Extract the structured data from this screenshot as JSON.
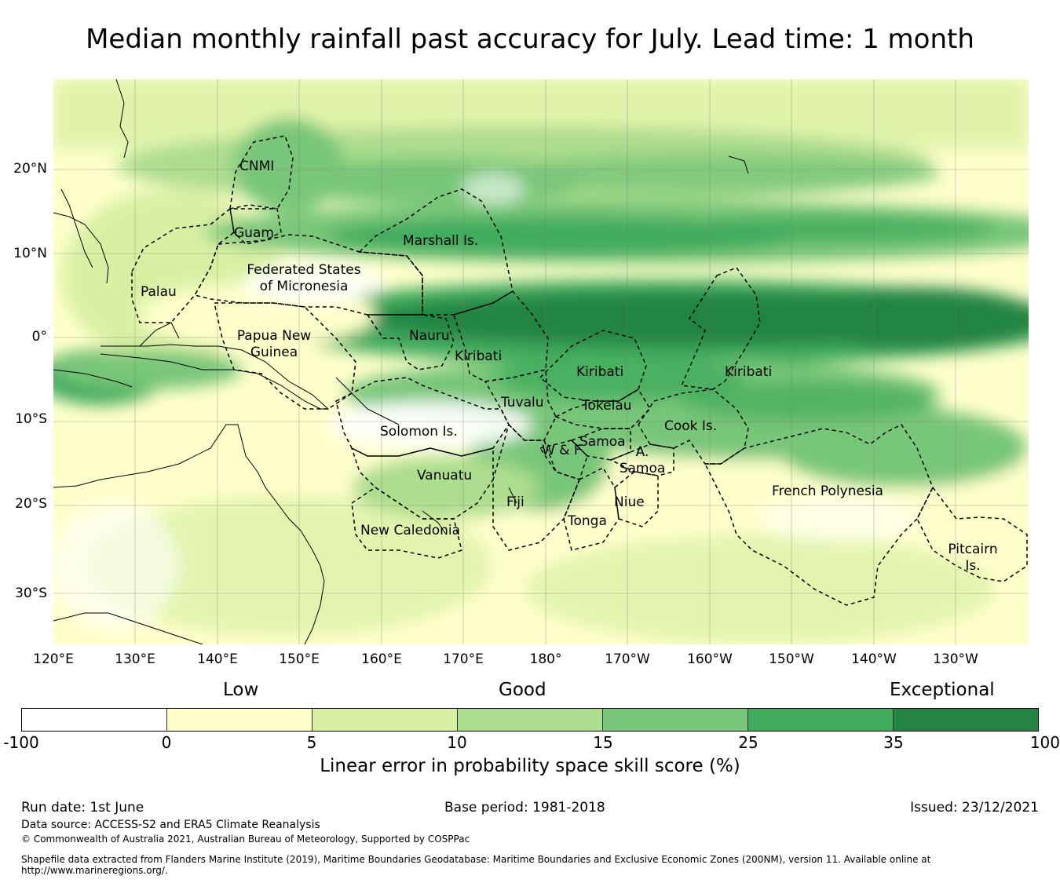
{
  "title": "Median monthly rainfall past accuracy for July. Lead time: 1 month",
  "map": {
    "lat_labels": [
      "20°N",
      "10°N",
      "0°",
      "10°S",
      "20°S",
      "30°S"
    ],
    "lon_labels": [
      "120°E",
      "130°E",
      "140°E",
      "150°E",
      "160°E",
      "170°E",
      "180°",
      "170°W",
      "160°W",
      "150°W",
      "140°W",
      "130°W"
    ],
    "regions": [
      {
        "name": "CNMI"
      },
      {
        "name": "Guam"
      },
      {
        "name": "Palau"
      },
      {
        "name": "Federated States\nof Micronesia"
      },
      {
        "name": "Marshall Is."
      },
      {
        "name": "Papua New\nGuinea"
      },
      {
        "name": "Nauru"
      },
      {
        "name": "Kiribati"
      },
      {
        "name": "Kiribati"
      },
      {
        "name": "Kiribati"
      },
      {
        "name": "Tuvalu"
      },
      {
        "name": "Tokelau"
      },
      {
        "name": "Solomon Is."
      },
      {
        "name": "Cook Is."
      },
      {
        "name": "Samoa"
      },
      {
        "name": "W & F"
      },
      {
        "name": "A.\nSamoa"
      },
      {
        "name": "Vanuatu"
      },
      {
        "name": "Fiji"
      },
      {
        "name": "Niue"
      },
      {
        "name": "Tonga"
      },
      {
        "name": "New Caledonia"
      },
      {
        "name": "French Polynesia"
      },
      {
        "name": "Pitcairn\nIs."
      }
    ]
  },
  "legend": {
    "categories": [
      "Low",
      "Good",
      "Exceptional"
    ],
    "ticks": [
      "-100",
      "0",
      "5",
      "10",
      "15",
      "25",
      "35",
      "100"
    ],
    "colors": [
      "#ffffff",
      "#ffffcc",
      "#d9f0a3",
      "#addd8e",
      "#78c679",
      "#41ab5d",
      "#238443"
    ],
    "label": "Linear error in probability space skill score (%)"
  },
  "footer": {
    "run_date": "Run date: 1st June",
    "base_period": "Base period: 1981-2018",
    "issued": "Issued: 23/12/2021",
    "data_source": "Data source: ACCESS-S2 and ERA5 Climate Reanalysis",
    "copyright": "© Commonwealth of Australia 2021, Australian Bureau of Meteorology, Supported by COSPPac",
    "shapefile_line1": "Shapefile data extracted from Flanders Marine Institute (2019), Maritime Boundaries Geodatabase: Maritime Boundaries and Exclusive Economic Zones (200NM), version 11. Available online at",
    "shapefile_line2": "http://www.marineregions.org/."
  }
}
